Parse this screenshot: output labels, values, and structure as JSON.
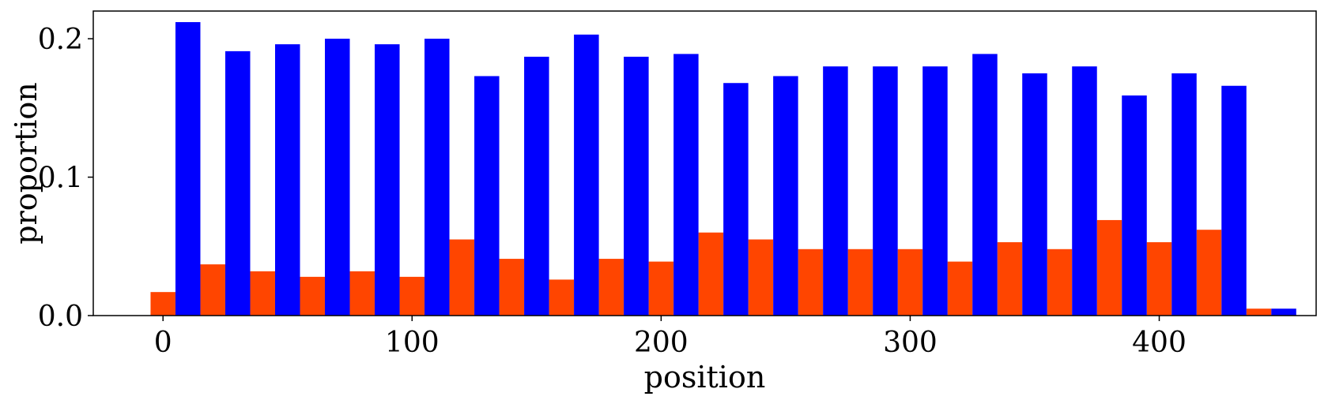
{
  "chart_data": {
    "type": "bar",
    "xlabel": "position",
    "ylabel": "proportion",
    "xlim": [
      -28,
      463
    ],
    "ylim": [
      0.0,
      0.22
    ],
    "x_ticks": [
      0,
      100,
      200,
      300,
      400
    ],
    "x_tick_labels": [
      "0",
      "100",
      "200",
      "300",
      "400"
    ],
    "y_ticks": [
      0.0,
      0.1,
      0.2
    ],
    "y_tick_labels": [
      "0.0",
      "0.1",
      "0.2"
    ],
    "grid": false,
    "legend": "none",
    "bin_width": 20,
    "bar_width": 10,
    "series": [
      {
        "color": "#ff4500",
        "x": [
          0,
          20,
          40,
          60,
          80,
          100,
          120,
          140,
          160,
          180,
          200,
          220,
          240,
          260,
          280,
          300,
          320,
          340,
          360,
          380,
          400,
          420,
          440
        ],
        "values": [
          0.017,
          0.037,
          0.032,
          0.028,
          0.032,
          0.028,
          0.055,
          0.041,
          0.026,
          0.041,
          0.039,
          0.06,
          0.055,
          0.048,
          0.048,
          0.048,
          0.039,
          0.053,
          0.048,
          0.069,
          0.053,
          0.062,
          0.005
        ]
      },
      {
        "color": "#0000ff",
        "x": [
          10,
          30,
          50,
          70,
          90,
          110,
          130,
          150,
          170,
          190,
          210,
          230,
          250,
          270,
          290,
          310,
          330,
          350,
          370,
          390,
          410,
          430,
          450
        ],
        "values": [
          0.212,
          0.191,
          0.196,
          0.2,
          0.196,
          0.2,
          0.173,
          0.187,
          0.203,
          0.187,
          0.189,
          0.168,
          0.173,
          0.18,
          0.18,
          0.18,
          0.189,
          0.175,
          0.18,
          0.159,
          0.175,
          0.166,
          0.005
        ]
      }
    ]
  }
}
